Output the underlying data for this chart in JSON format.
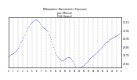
{
  "title": "Milwaukee Barometric Pressure\nper Minute\n(24 Hours)",
  "background_color": "#ffffff",
  "plot_bg_color": "#ffffff",
  "dot_color": "#0000cc",
  "grid_color": "#aaaaaa",
  "tick_color": "#000000",
  "x_min": 0,
  "x_max": 1440,
  "y_min": 29.6,
  "y_max": 30.2,
  "y_ticks": [
    29.65,
    29.75,
    29.85,
    29.95,
    30.05,
    30.15
  ],
  "y_tick_labels": [
    "29.65",
    "29.75",
    "29.85",
    "29.95",
    "30.05",
    "30.15"
  ],
  "x_tick_positions": [
    0,
    60,
    120,
    180,
    240,
    300,
    360,
    420,
    480,
    540,
    600,
    660,
    720,
    780,
    840,
    900,
    960,
    1020,
    1080,
    1140,
    1200,
    1260,
    1320,
    1380,
    1440
  ],
  "x_tick_labels": [
    "0",
    "1",
    "2",
    "3",
    "4",
    "5",
    "6",
    "7",
    "8",
    "9",
    "10",
    "11",
    "12",
    "13",
    "14",
    "15",
    "16",
    "17",
    "18",
    "19",
    "20",
    "21",
    "22",
    "23",
    "0"
  ],
  "vgrid_positions": [
    60,
    120,
    180,
    240,
    300,
    360,
    420,
    480,
    540,
    600,
    660,
    720,
    780,
    840,
    900,
    960,
    1020,
    1080,
    1140,
    1200,
    1260,
    1320,
    1380
  ],
  "data_x": [
    0,
    10,
    20,
    30,
    40,
    50,
    60,
    70,
    80,
    90,
    100,
    110,
    120,
    130,
    140,
    150,
    160,
    170,
    180,
    190,
    200,
    210,
    220,
    230,
    240,
    250,
    260,
    270,
    280,
    290,
    300,
    310,
    320,
    330,
    340,
    350,
    360,
    370,
    380,
    390,
    400,
    410,
    420,
    430,
    440,
    450,
    460,
    470,
    480,
    490,
    500,
    510,
    520,
    530,
    540,
    550,
    560,
    570,
    580,
    590,
    600,
    610,
    620,
    630,
    640,
    650,
    660,
    670,
    680,
    690,
    700,
    710,
    720,
    730,
    740,
    750,
    760,
    770,
    780,
    790,
    800,
    810,
    820,
    830,
    840,
    850,
    860,
    870,
    880,
    890,
    900,
    910,
    920,
    930,
    940,
    950,
    960,
    970,
    980,
    990,
    1000,
    1010,
    1020,
    1030,
    1040,
    1050,
    1060,
    1070,
    1080,
    1090,
    1100,
    1110,
    1120,
    1130,
    1140,
    1150,
    1160,
    1170,
    1180,
    1190,
    1200,
    1210,
    1220,
    1230,
    1240,
    1250,
    1260,
    1270,
    1280,
    1290,
    1300,
    1310,
    1320,
    1330,
    1340,
    1350,
    1360,
    1370,
    1380,
    1390,
    1400,
    1410,
    1420,
    1430
  ],
  "data_y": [
    29.73,
    29.74,
    29.75,
    29.76,
    29.76,
    29.77,
    29.77,
    29.78,
    29.79,
    29.8,
    29.81,
    29.82,
    29.84,
    29.86,
    29.88,
    29.9,
    29.91,
    29.93,
    29.95,
    29.97,
    29.99,
    30.01,
    30.03,
    30.05,
    30.07,
    30.09,
    30.1,
    30.12,
    30.13,
    30.14,
    30.15,
    30.16,
    30.17,
    30.17,
    30.18,
    30.18,
    30.18,
    30.17,
    30.16,
    30.15,
    30.13,
    30.12,
    30.1,
    30.09,
    30.08,
    30.07,
    30.07,
    30.06,
    30.05,
    30.04,
    30.03,
    30.01,
    29.99,
    29.97,
    29.94,
    29.91,
    29.88,
    29.85,
    29.82,
    29.79,
    29.77,
    29.75,
    29.73,
    29.72,
    29.71,
    29.7,
    29.7,
    29.69,
    29.69,
    29.69,
    29.69,
    29.7,
    29.7,
    29.71,
    29.71,
    29.72,
    29.72,
    29.72,
    29.72,
    29.71,
    29.7,
    29.69,
    29.68,
    29.66,
    29.64,
    29.62,
    29.6,
    29.59,
    29.58,
    29.58,
    29.58,
    29.59,
    29.6,
    29.61,
    29.62,
    29.62,
    29.63,
    29.64,
    29.65,
    29.66,
    29.67,
    29.68,
    29.69,
    29.7,
    29.71,
    29.72,
    29.73,
    29.74,
    29.74,
    29.75,
    29.76,
    29.77,
    29.78,
    29.79,
    29.8,
    29.81,
    29.82,
    29.83,
    29.84,
    29.85,
    29.86,
    29.87,
    29.88,
    29.89,
    29.9,
    29.9,
    29.91,
    29.92,
    29.93,
    29.94,
    29.94,
    29.95,
    29.96,
    29.96,
    29.97,
    29.97,
    29.98,
    29.98,
    29.99,
    29.99,
    30.0,
    30.01,
    30.02,
    30.03
  ]
}
